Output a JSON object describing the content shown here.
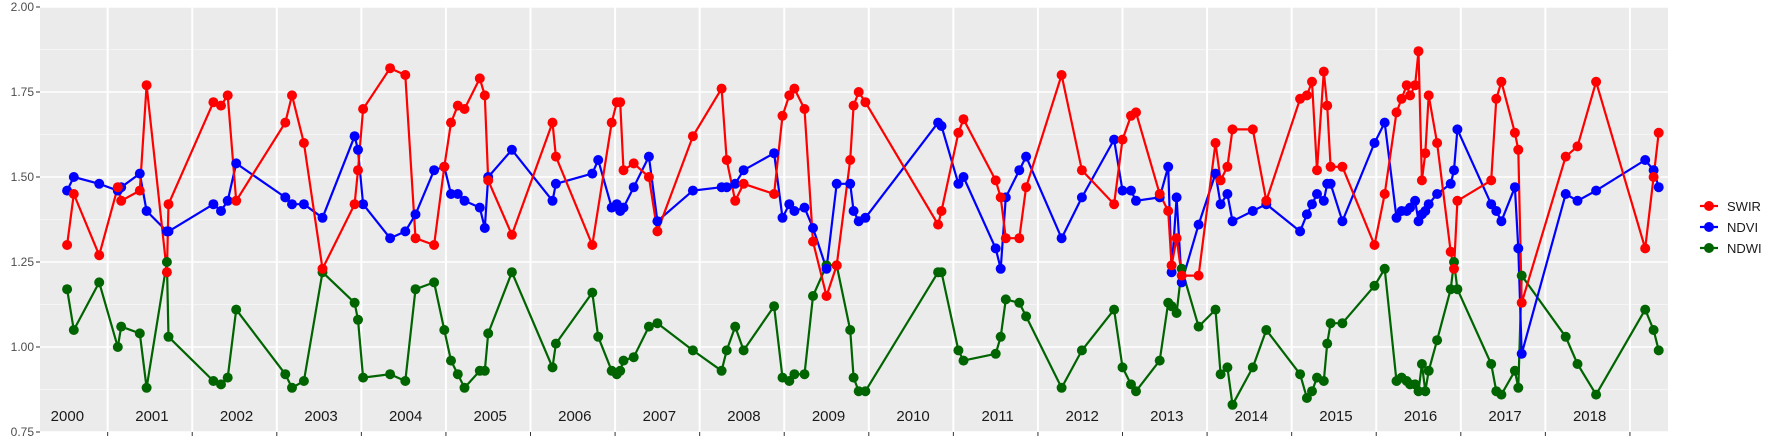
{
  "chart_data": {
    "type": "line",
    "title": "",
    "xlabel": "",
    "ylabel": "",
    "ylim": [
      0.75,
      2.0
    ],
    "xlim": [
      1999.7,
      2018.95
    ],
    "y_ticks": [
      "0.75",
      "1.00",
      "1.25",
      "1.50",
      "1.75",
      "2.00"
    ],
    "y_tick_values": [
      0.75,
      1.0,
      1.25,
      1.5,
      1.75,
      2.0
    ],
    "year_labels": [
      "2000",
      "2001",
      "2002",
      "2003",
      "2004",
      "2005",
      "2006",
      "2007",
      "2008",
      "2009",
      "2010",
      "2011",
      "2012",
      "2013",
      "2014",
      "2015",
      "2016",
      "2017",
      "2018"
    ],
    "grid": true,
    "legend_position": "right",
    "series": [
      {
        "name": "SWIR",
        "color": "#ff0000",
        "x": [
          2000.02,
          2000.1,
          2000.4,
          2000.62,
          2000.66,
          2000.88,
          2000.96,
          2001.2,
          2001.22,
          2001.75,
          2001.84,
          2001.92,
          2002.02,
          2002.6,
          2002.68,
          2002.82,
          2003.04,
          2003.42,
          2003.46,
          2003.52,
          2003.84,
          2004.02,
          2004.14,
          2004.36,
          2004.48,
          2004.56,
          2004.64,
          2004.72,
          2004.9,
          2004.96,
          2005.0
        ],
        "y": [
          1.3,
          1.45,
          1.27,
          1.47,
          1.43,
          1.46,
          1.77,
          1.22,
          1.42,
          1.72,
          1.71,
          1.74,
          1.43,
          1.66,
          1.74,
          1.6,
          1.23,
          1.42,
          1.52,
          1.7,
          1.82,
          1.8,
          1.32,
          1.3,
          1.53,
          1.66,
          1.71,
          1.7,
          1.79,
          1.74,
          1.49
        ]
      },
      {
        "name": "NDVI",
        "color": "#0000ff",
        "x": [
          2000.02,
          2000.1,
          2000.4,
          2000.62,
          2000.66,
          2000.88,
          2000.96,
          2001.2,
          2001.22,
          2001.75,
          2001.84,
          2001.92,
          2002.02,
          2002.6,
          2002.68,
          2002.82,
          2003.04,
          2003.42,
          2003.46,
          2003.52,
          2003.84,
          2004.02,
          2004.14,
          2004.36,
          2004.48,
          2004.56,
          2004.64,
          2004.72,
          2004.9,
          2004.96,
          2005.0
        ],
        "y": [
          1.46,
          1.5,
          1.48,
          1.46,
          1.47,
          1.51,
          1.4,
          1.34,
          1.34,
          1.42,
          1.4,
          1.43,
          1.54,
          1.44,
          1.42,
          1.42,
          1.38,
          1.62,
          1.58,
          1.42,
          1.32,
          1.34,
          1.39,
          1.52,
          1.53,
          1.45,
          1.45,
          1.43,
          1.41,
          1.35,
          1.5
        ]
      },
      {
        "name": "NDWI",
        "color": "#006400",
        "x": [
          2000.02,
          2000.1,
          2000.4,
          2000.62,
          2000.66,
          2000.88,
          2000.96,
          2001.2,
          2001.22,
          2001.75,
          2001.84,
          2001.92,
          2002.02,
          2002.6,
          2002.68,
          2002.82,
          2003.04,
          2003.42,
          2003.46,
          2003.52,
          2003.84,
          2004.02,
          2004.14,
          2004.36,
          2004.48,
          2004.56,
          2004.64,
          2004.72,
          2004.9,
          2004.96,
          2005.0
        ],
        "y": [
          1.17,
          1.05,
          1.19,
          1.0,
          1.06,
          1.04,
          0.88,
          1.25,
          1.03,
          0.9,
          0.89,
          0.91,
          1.11,
          0.92,
          0.88,
          0.9,
          1.22,
          1.13,
          1.08,
          0.91,
          0.92,
          0.9,
          1.17,
          1.19,
          1.05,
          0.96,
          0.92,
          0.88,
          0.93,
          0.93,
          1.04
        ]
      }
    ]
  },
  "extra_series_points": {
    "SWIR": [
      [
        2005.28,
        1.33
      ],
      [
        2005.76,
        1.66
      ],
      [
        2005.8,
        1.56
      ],
      [
        2006.23,
        1.3
      ],
      [
        2006.46,
        1.66
      ],
      [
        2006.52,
        1.72
      ],
      [
        2006.56,
        1.72
      ],
      [
        2006.6,
        1.52
      ],
      [
        2006.72,
        1.54
      ],
      [
        2006.9,
        1.5
      ],
      [
        2007.0,
        1.34
      ],
      [
        2007.42,
        1.62
      ],
      [
        2007.76,
        1.76
      ],
      [
        2007.82,
        1.55
      ],
      [
        2007.92,
        1.43
      ],
      [
        2008.02,
        1.48
      ],
      [
        2008.38,
        1.45
      ],
      [
        2008.48,
        1.68
      ],
      [
        2008.56,
        1.74
      ],
      [
        2008.62,
        1.76
      ],
      [
        2008.74,
        1.7
      ],
      [
        2008.84,
        1.31
      ],
      [
        2009.0,
        1.15
      ],
      [
        2009.12,
        1.24
      ],
      [
        2009.28,
        1.55
      ],
      [
        2009.32,
        1.71
      ],
      [
        2009.38,
        1.75
      ],
      [
        2009.46,
        1.72
      ],
      [
        2010.32,
        1.36
      ],
      [
        2010.36,
        1.4
      ],
      [
        2010.56,
        1.63
      ],
      [
        2010.62,
        1.67
      ],
      [
        2011.0,
        1.49
      ],
      [
        2011.06,
        1.44
      ],
      [
        2011.12,
        1.32
      ],
      [
        2011.28,
        1.32
      ],
      [
        2011.36,
        1.47
      ],
      [
        2011.78,
        1.8
      ],
      [
        2012.02,
        1.52
      ],
      [
        2012.4,
        1.42
      ],
      [
        2012.5,
        1.61
      ],
      [
        2012.6,
        1.68
      ],
      [
        2012.66,
        1.69
      ],
      [
        2012.94,
        1.45
      ],
      [
        2013.04,
        1.4
      ],
      [
        2013.08,
        1.24
      ],
      [
        2013.14,
        1.32
      ],
      [
        2013.2,
        1.21
      ],
      [
        2013.4,
        1.21
      ],
      [
        2013.6,
        1.6
      ],
      [
        2013.66,
        1.49
      ],
      [
        2013.74,
        1.53
      ],
      [
        2013.8,
        1.64
      ],
      [
        2014.04,
        1.64
      ],
      [
        2014.2,
        1.43
      ],
      [
        2014.6,
        1.73
      ],
      [
        2014.68,
        1.74
      ],
      [
        2014.74,
        1.78
      ],
      [
        2014.8,
        1.52
      ],
      [
        2014.88,
        1.81
      ],
      [
        2014.92,
        1.71
      ],
      [
        2014.96,
        1.53
      ],
      [
        2015.1,
        1.53
      ],
      [
        2015.48,
        1.3
      ],
      [
        2015.6,
        1.45
      ],
      [
        2015.74,
        1.69
      ],
      [
        2015.8,
        1.73
      ],
      [
        2015.86,
        1.77
      ],
      [
        2015.9,
        1.74
      ],
      [
        2015.96,
        1.77
      ],
      [
        2016.0,
        1.87
      ],
      [
        2016.04,
        1.49
      ],
      [
        2016.08,
        1.57
      ],
      [
        2016.12,
        1.74
      ],
      [
        2016.22,
        1.6
      ],
      [
        2016.38,
        1.28
      ],
      [
        2016.42,
        1.23
      ],
      [
        2016.46,
        1.43
      ],
      [
        2016.86,
        1.49
      ],
      [
        2016.92,
        1.73
      ],
      [
        2016.98,
        1.78
      ],
      [
        2017.14,
        1.63
      ],
      [
        2017.18,
        1.58
      ],
      [
        2017.22,
        1.13
      ],
      [
        2017.74,
        1.56
      ],
      [
        2017.88,
        1.59
      ],
      [
        2018.1,
        1.78
      ],
      [
        2018.68,
        1.29
      ],
      [
        2018.78,
        1.5
      ],
      [
        2018.84,
        1.63
      ]
    ],
    "NDVI": [
      [
        2005.28,
        1.58
      ],
      [
        2005.76,
        1.43
      ],
      [
        2005.8,
        1.48
      ],
      [
        2006.23,
        1.51
      ],
      [
        2006.3,
        1.55
      ],
      [
        2006.46,
        1.41
      ],
      [
        2006.52,
        1.42
      ],
      [
        2006.56,
        1.4
      ],
      [
        2006.6,
        1.41
      ],
      [
        2006.72,
        1.47
      ],
      [
        2006.9,
        1.56
      ],
      [
        2007.0,
        1.37
      ],
      [
        2007.42,
        1.46
      ],
      [
        2007.76,
        1.47
      ],
      [
        2007.82,
        1.47
      ],
      [
        2007.92,
        1.48
      ],
      [
        2008.02,
        1.52
      ],
      [
        2008.38,
        1.57
      ],
      [
        2008.48,
        1.38
      ],
      [
        2008.56,
        1.42
      ],
      [
        2008.62,
        1.4
      ],
      [
        2008.74,
        1.41
      ],
      [
        2008.84,
        1.35
      ],
      [
        2009.0,
        1.23
      ],
      [
        2009.12,
        1.48
      ],
      [
        2009.28,
        1.48
      ],
      [
        2009.32,
        1.4
      ],
      [
        2009.38,
        1.37
      ],
      [
        2009.46,
        1.38
      ],
      [
        2010.32,
        1.66
      ],
      [
        2010.36,
        1.65
      ],
      [
        2010.56,
        1.48
      ],
      [
        2010.62,
        1.5
      ],
      [
        2011.0,
        1.29
      ],
      [
        2011.06,
        1.23
      ],
      [
        2011.12,
        1.44
      ],
      [
        2011.28,
        1.52
      ],
      [
        2011.36,
        1.56
      ],
      [
        2011.78,
        1.32
      ],
      [
        2012.02,
        1.44
      ],
      [
        2012.4,
        1.61
      ],
      [
        2012.5,
        1.46
      ],
      [
        2012.6,
        1.46
      ],
      [
        2012.66,
        1.43
      ],
      [
        2012.94,
        1.44
      ],
      [
        2013.04,
        1.53
      ],
      [
        2013.08,
        1.22
      ],
      [
        2013.14,
        1.44
      ],
      [
        2013.2,
        1.19
      ],
      [
        2013.4,
        1.36
      ],
      [
        2013.6,
        1.51
      ],
      [
        2013.66,
        1.42
      ],
      [
        2013.74,
        1.45
      ],
      [
        2013.8,
        1.37
      ],
      [
        2014.04,
        1.4
      ],
      [
        2014.2,
        1.42
      ],
      [
        2014.6,
        1.34
      ],
      [
        2014.68,
        1.39
      ],
      [
        2014.74,
        1.42
      ],
      [
        2014.8,
        1.45
      ],
      [
        2014.88,
        1.43
      ],
      [
        2014.92,
        1.48
      ],
      [
        2014.96,
        1.48
      ],
      [
        2015.1,
        1.37
      ],
      [
        2015.48,
        1.6
      ],
      [
        2015.6,
        1.66
      ],
      [
        2015.74,
        1.38
      ],
      [
        2015.8,
        1.4
      ],
      [
        2015.86,
        1.4
      ],
      [
        2015.9,
        1.41
      ],
      [
        2015.96,
        1.43
      ],
      [
        2016.0,
        1.37
      ],
      [
        2016.04,
        1.39
      ],
      [
        2016.08,
        1.4
      ],
      [
        2016.12,
        1.42
      ],
      [
        2016.22,
        1.45
      ],
      [
        2016.38,
        1.48
      ],
      [
        2016.42,
        1.52
      ],
      [
        2016.46,
        1.64
      ],
      [
        2016.86,
        1.42
      ],
      [
        2016.92,
        1.4
      ],
      [
        2016.98,
        1.37
      ],
      [
        2017.14,
        1.47
      ],
      [
        2017.18,
        1.29
      ],
      [
        2017.22,
        0.98
      ],
      [
        2017.74,
        1.45
      ],
      [
        2017.88,
        1.43
      ],
      [
        2018.1,
        1.46
      ],
      [
        2018.68,
        1.55
      ],
      [
        2018.78,
        1.52
      ],
      [
        2018.84,
        1.47
      ]
    ],
    "NDWI": [
      [
        2005.28,
        1.22
      ],
      [
        2005.76,
        0.94
      ],
      [
        2005.8,
        1.01
      ],
      [
        2006.23,
        1.16
      ],
      [
        2006.3,
        1.03
      ],
      [
        2006.46,
        0.93
      ],
      [
        2006.52,
        0.92
      ],
      [
        2006.56,
        0.93
      ],
      [
        2006.6,
        0.96
      ],
      [
        2006.72,
        0.97
      ],
      [
        2006.9,
        1.06
      ],
      [
        2007.0,
        1.07
      ],
      [
        2007.42,
        0.99
      ],
      [
        2007.76,
        0.93
      ],
      [
        2007.82,
        0.99
      ],
      [
        2007.92,
        1.06
      ],
      [
        2008.02,
        0.99
      ],
      [
        2008.38,
        1.12
      ],
      [
        2008.48,
        0.91
      ],
      [
        2008.56,
        0.9
      ],
      [
        2008.62,
        0.92
      ],
      [
        2008.74,
        0.92
      ],
      [
        2008.84,
        1.15
      ],
      [
        2009.0,
        1.24
      ],
      [
        2009.12,
        1.24
      ],
      [
        2009.28,
        1.05
      ],
      [
        2009.32,
        0.91
      ],
      [
        2009.38,
        0.87
      ],
      [
        2009.46,
        0.87
      ],
      [
        2010.32,
        1.22
      ],
      [
        2010.36,
        1.22
      ],
      [
        2010.56,
        0.99
      ],
      [
        2010.62,
        0.96
      ],
      [
        2011.0,
        0.98
      ],
      [
        2011.06,
        1.03
      ],
      [
        2011.12,
        1.14
      ],
      [
        2011.28,
        1.13
      ],
      [
        2011.36,
        1.09
      ],
      [
        2011.78,
        0.88
      ],
      [
        2012.02,
        0.99
      ],
      [
        2012.4,
        1.11
      ],
      [
        2012.5,
        0.94
      ],
      [
        2012.6,
        0.89
      ],
      [
        2012.66,
        0.87
      ],
      [
        2012.94,
        0.96
      ],
      [
        2013.04,
        1.13
      ],
      [
        2013.08,
        1.12
      ],
      [
        2013.14,
        1.1
      ],
      [
        2013.2,
        1.23
      ],
      [
        2013.4,
        1.06
      ],
      [
        2013.6,
        1.11
      ],
      [
        2013.66,
        0.92
      ],
      [
        2013.74,
        0.94
      ],
      [
        2013.8,
        0.83
      ],
      [
        2014.04,
        0.94
      ],
      [
        2014.2,
        1.05
      ],
      [
        2014.6,
        0.92
      ],
      [
        2014.68,
        0.85
      ],
      [
        2014.74,
        0.87
      ],
      [
        2014.8,
        0.91
      ],
      [
        2014.88,
        0.9
      ],
      [
        2014.92,
        1.01
      ],
      [
        2014.96,
        1.07
      ],
      [
        2015.1,
        1.07
      ],
      [
        2015.48,
        1.18
      ],
      [
        2015.6,
        1.23
      ],
      [
        2015.74,
        0.9
      ],
      [
        2015.8,
        0.91
      ],
      [
        2015.86,
        0.9
      ],
      [
        2015.9,
        0.89
      ],
      [
        2015.96,
        0.89
      ],
      [
        2016.0,
        0.87
      ],
      [
        2016.04,
        0.95
      ],
      [
        2016.08,
        0.87
      ],
      [
        2016.12,
        0.93
      ],
      [
        2016.22,
        1.02
      ],
      [
        2016.38,
        1.17
      ],
      [
        2016.42,
        1.25
      ],
      [
        2016.46,
        1.17
      ],
      [
        2016.86,
        0.95
      ],
      [
        2016.92,
        0.87
      ],
      [
        2016.98,
        0.86
      ],
      [
        2017.14,
        0.93
      ],
      [
        2017.18,
        0.88
      ],
      [
        2017.22,
        1.21
      ],
      [
        2017.74,
        1.03
      ],
      [
        2017.88,
        0.95
      ],
      [
        2018.1,
        0.86
      ],
      [
        2018.68,
        1.11
      ],
      [
        2018.78,
        1.05
      ],
      [
        2018.84,
        0.99
      ]
    ]
  }
}
